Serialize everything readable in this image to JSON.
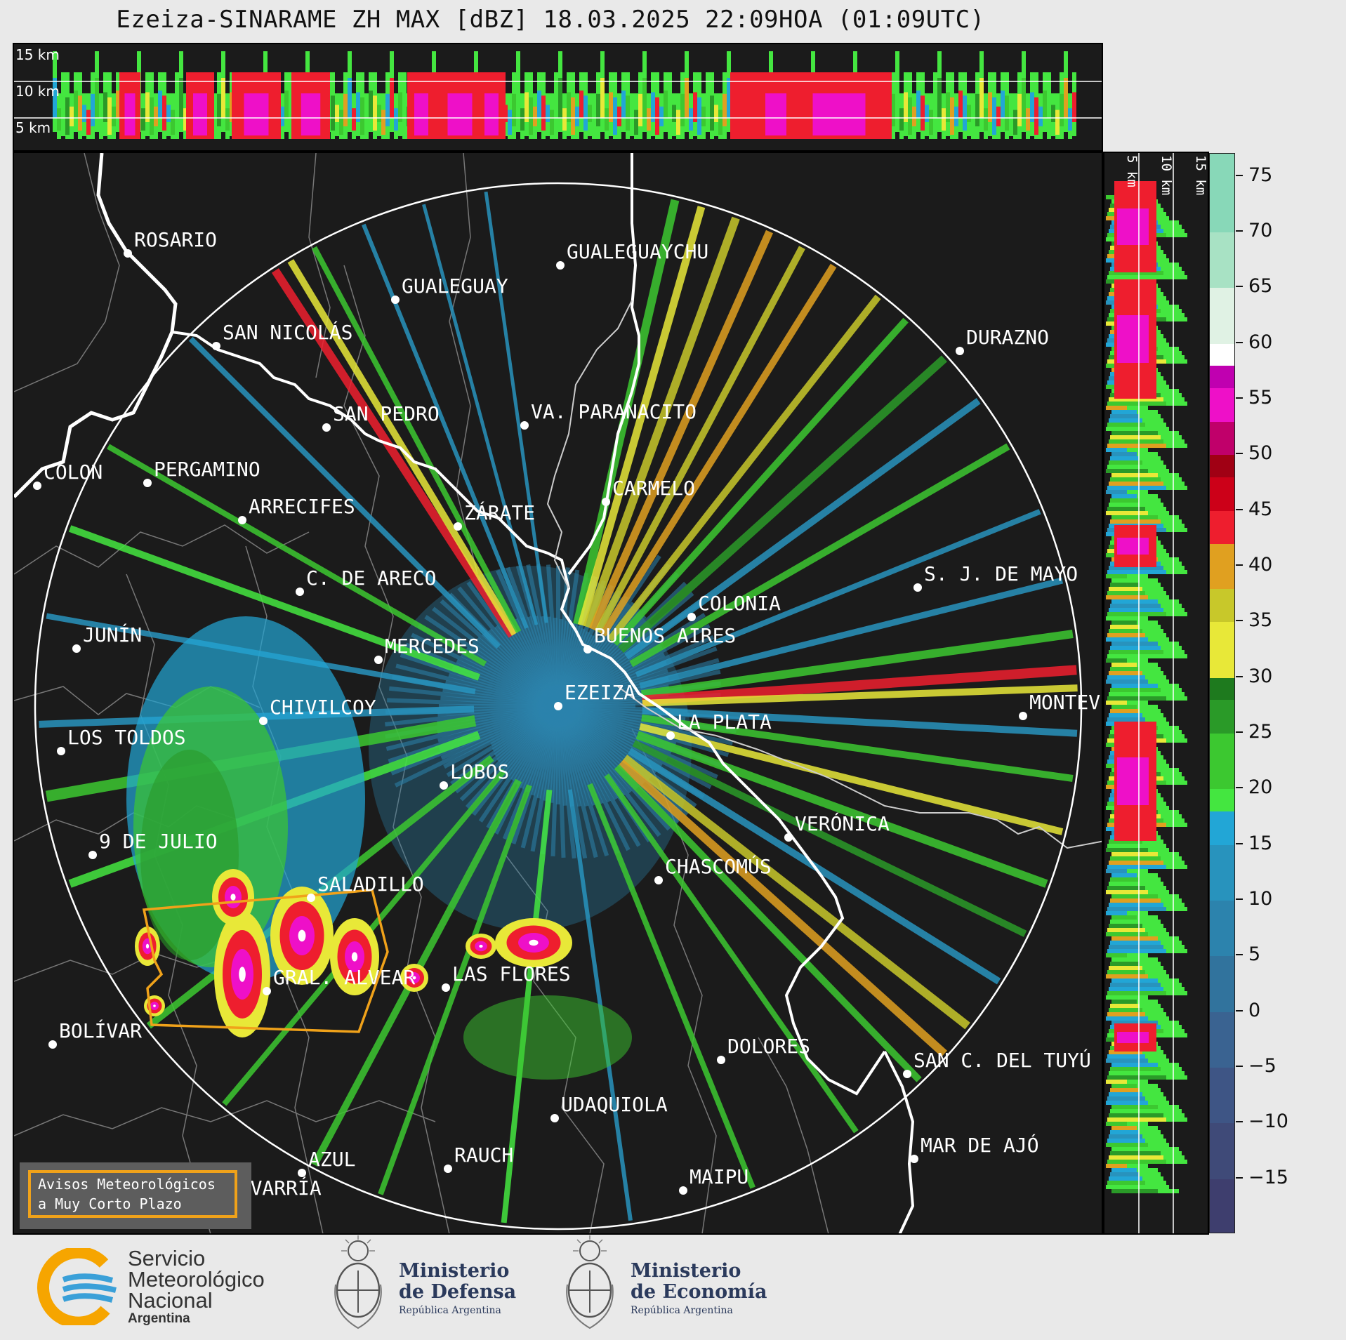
{
  "title": "Ezeiza-SINARAME ZH MAX [dBZ] 18.03.2025 22:09HOA (01:09UTC)",
  "top_panel": {
    "altitude_labels": [
      "15 km",
      "10 km",
      "5 km"
    ]
  },
  "side_panel": {
    "altitude_labels": [
      "5 km",
      "10 km",
      "15 km"
    ]
  },
  "colorbar": {
    "unit": "dBZ",
    "ticks": [
      "75",
      "70",
      "65",
      "60",
      "55",
      "50",
      "45",
      "40",
      "35",
      "30",
      "25",
      "20",
      "15",
      "10",
      "5",
      "0",
      "−5",
      "−10",
      "−15"
    ],
    "range": [
      -20,
      77
    ],
    "colors": {
      "-20": "#3e3e6e",
      "-15": "#3f4a78",
      "-10": "#3e5585",
      "-5": "#3a6391",
      "0": "#31739d",
      "5": "#2c83ad",
      "10": "#2893bd",
      "15": "#22a6d6",
      "18": "#44e640",
      "20": "#3cc830",
      "25": "#2a9a28",
      "28": "#1e7a1e",
      "30": "#e8e838",
      "35": "#c8c82a",
      "38": "#e0a020",
      "42": "#ee1e2e",
      "45": "#cc0018",
      "48": "#a00014",
      "50": "#c0006a",
      "53": "#ee10c8",
      "56": "#c000b0",
      "58": "#ffffff",
      "60": "#e0f2e4",
      "65": "#a8e2c4",
      "70": "#88d8b8"
    }
  },
  "cities": [
    {
      "name": "ROSARIO"
    },
    {
      "name": "GUALEGUAYCHU"
    },
    {
      "name": "GUALEGUAY"
    },
    {
      "name": "SAN NICOLÁS"
    },
    {
      "name": "DURAZNO"
    },
    {
      "name": "SAN PEDRO"
    },
    {
      "name": "VA. PARANACITO"
    },
    {
      "name": "COLON"
    },
    {
      "name": "PERGAMINO"
    },
    {
      "name": "CARMELO"
    },
    {
      "name": "ARRECIFES"
    },
    {
      "name": "ZÁRATE"
    },
    {
      "name": "C. DE ARECO"
    },
    {
      "name": "S. J. DE MAYO"
    },
    {
      "name": "COLONIA"
    },
    {
      "name": "JUNÍN"
    },
    {
      "name": "BUENOS AIRES"
    },
    {
      "name": "MERCEDES"
    },
    {
      "name": "EZEIZA"
    },
    {
      "name": "MONTEVIDEO"
    },
    {
      "name": "CHIVILCOY"
    },
    {
      "name": "LA PLATA"
    },
    {
      "name": "LOS TOLDOS"
    },
    {
      "name": "LOBOS"
    },
    {
      "name": "VERÓNICA"
    },
    {
      "name": "9 DE JULIO"
    },
    {
      "name": "CHASCOMÚS"
    },
    {
      "name": "SALADILLO"
    },
    {
      "name": "GRAL. ALVEAR"
    },
    {
      "name": "LAS FLORES"
    },
    {
      "name": "BOLÍVAR"
    },
    {
      "name": "DOLORES"
    },
    {
      "name": "SAN C. DEL TUYÚ"
    },
    {
      "name": "UDAQUIOLA"
    },
    {
      "name": "MAR DE AJÓ"
    },
    {
      "name": "AZUL"
    },
    {
      "name": "RAUCH"
    },
    {
      "name": "OLAVARRÍA"
    },
    {
      "name": "MAIPU"
    }
  ],
  "warning_box": {
    "line1": "Avisos Meteorológicos",
    "line2": "a Muy Corto Plazo",
    "color": "#f0a21a"
  },
  "logos": {
    "smn": {
      "line1": "Servicio",
      "line2": "Meteorológico",
      "line3": "Nacional",
      "line4": "Argentina"
    },
    "defensa": {
      "line1": "Ministerio",
      "line2": "de Defensa",
      "line3": "República Argentina"
    },
    "economia": {
      "line1": "Ministerio",
      "line2": "de Economía",
      "line3": "República Argentina"
    }
  }
}
